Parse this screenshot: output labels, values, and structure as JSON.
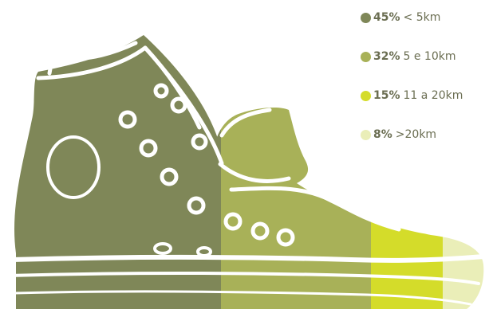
{
  "chart_data": {
    "type": "pictorial-stacked-bar",
    "orientation": "horizontal",
    "unit": "%",
    "legend_position": "right",
    "series": [
      {
        "value": 45,
        "pct_label": "45%",
        "label": "< 5km",
        "color": "#7f8758"
      },
      {
        "value": 32,
        "pct_label": "32%",
        "label": "5 e 10km",
        "color": "#a8b158"
      },
      {
        "value": 15,
        "pct_label": "15%",
        "label": "11 a 20km",
        "color": "#d4dc2a"
      },
      {
        "value": 8,
        "pct_label": "8%",
        "label": ">20km",
        "color": "#eaeeb8"
      }
    ]
  }
}
